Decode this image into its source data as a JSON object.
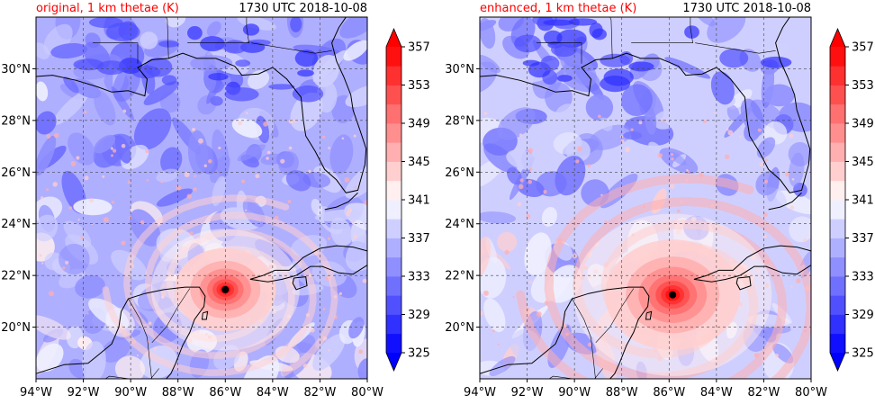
{
  "panels": [
    {
      "title_left": "original, 1 km thetae (K)",
      "title_right": "1730 UTC 2018-10-08",
      "storm_center": {
        "lon": -86.0,
        "lat": 21.45
      },
      "storm_intensity": 0.75
    },
    {
      "title_left": "enhanced, 1 km thetae (K)",
      "title_right": "1730 UTC 2018-10-08",
      "storm_center": {
        "lon": -85.85,
        "lat": 21.25
      },
      "storm_intensity": 1.0
    }
  ],
  "map": {
    "lon_range": [
      -94,
      -80
    ],
    "lat_range": [
      18,
      32
    ],
    "lon_ticks": [
      "94°W",
      "92°W",
      "90°W",
      "88°W",
      "86°W",
      "84°W",
      "82°W",
      "80°W"
    ],
    "lat_ticks": [
      "20°N",
      "22°N",
      "24°N",
      "26°N",
      "28°N",
      "30°N"
    ],
    "gridlines": true
  },
  "colorbar": {
    "levels": [
      325,
      327,
      329,
      331,
      333,
      335,
      337,
      339,
      341,
      343,
      345,
      347,
      349,
      351,
      353,
      355,
      357
    ],
    "tick_labels": [
      "325",
      "329",
      "333",
      "337",
      "341",
      "345",
      "349",
      "353",
      "357"
    ],
    "extend": "both",
    "colormap": "bwr"
  }
}
